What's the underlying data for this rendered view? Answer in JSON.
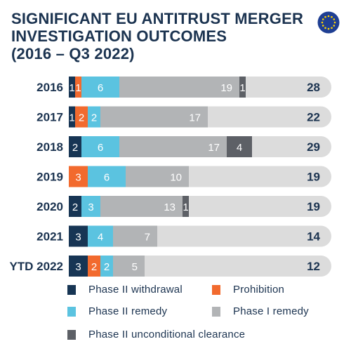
{
  "title_line1": "SIGNIFICANT EU ANTITRUST MERGER",
  "title_line2": "INVESTIGATION OUTCOMES",
  "title_line3": "(2016 – Q3 2022)",
  "flag_icon": "eu-flag-icon",
  "colors": {
    "Phase II withdrawal": "#173554",
    "Prohibition": "#f26a2e",
    "Phase II remedy": "#5bc3e0",
    "Phase I remedy": "#b2b4b6",
    "Phase II unconditional clearance": "#5d6066",
    "track": "#dcdcdc",
    "text_dark": "#1b3350"
  },
  "chart_data": {
    "type": "bar",
    "orientation": "horizontal",
    "stacked": true,
    "categories": [
      "2016",
      "2017",
      "2018",
      "2019",
      "2020",
      "2021",
      "YTD 2022"
    ],
    "series": [
      {
        "name": "Phase II withdrawal",
        "values": [
          1,
          1,
          2,
          0,
          2,
          3,
          3
        ]
      },
      {
        "name": "Prohibition",
        "values": [
          1,
          2,
          0,
          3,
          0,
          0,
          2
        ]
      },
      {
        "name": "Phase II remedy",
        "values": [
          6,
          2,
          6,
          6,
          3,
          4,
          2
        ]
      },
      {
        "name": "Phase I remedy",
        "values": [
          19,
          17,
          17,
          10,
          13,
          7,
          5
        ]
      },
      {
        "name": "Phase II unconditional clearance",
        "values": [
          1,
          0,
          4,
          0,
          1,
          0,
          0
        ]
      }
    ],
    "totals": [
      28,
      22,
      29,
      19,
      19,
      14,
      12
    ],
    "legend_position": "bottom",
    "grid": false
  },
  "legend": [
    {
      "label": "Phase II withdrawal",
      "color": "#173554"
    },
    {
      "label": "Prohibition",
      "color": "#f26a2e"
    },
    {
      "label": "Phase II remedy",
      "color": "#5bc3e0"
    },
    {
      "label": "Phase I remedy",
      "color": "#b2b4b6"
    },
    {
      "label": "Phase II unconditional clearance",
      "color": "#5d6066"
    }
  ]
}
